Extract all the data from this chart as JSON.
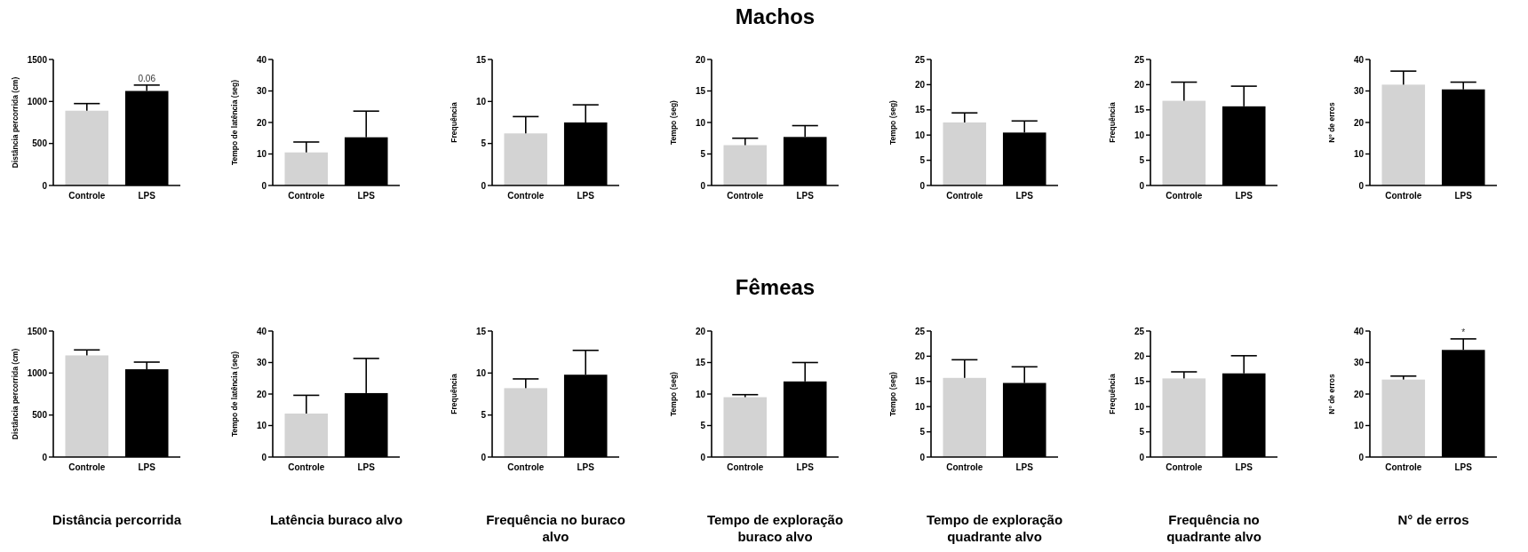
{
  "chart_data": [
    {
      "type": "bar",
      "categories": [
        "Controle",
        "LPS"
      ],
      "values": [
        890,
        1125
      ],
      "errors": [
        [
          890,
          975
        ],
        [
          1125,
          1195
        ]
      ],
      "colors": [
        "#d3d3d3",
        "#000000"
      ],
      "ylabel": "Distância percorrida (cm)",
      "ylim": [
        0,
        1500
      ],
      "yticks": [
        0,
        500,
        1000,
        1500
      ],
      "annotations": [
        {
          "text": "0.06",
          "x": "LPS",
          "y": 1195
        }
      ]
    },
    {
      "type": "bar",
      "categories": [
        "Controle",
        "LPS"
      ],
      "values": [
        10.5,
        15.3
      ],
      "errors": [
        [
          10.5,
          13.8
        ],
        [
          15.3,
          23.6
        ]
      ],
      "colors": [
        "#d3d3d3",
        "#000000"
      ],
      "ylabel": "Tempo de latência (seg)",
      "ylim": [
        0,
        40
      ],
      "yticks": [
        0,
        10,
        20,
        30,
        40
      ]
    },
    {
      "type": "bar",
      "categories": [
        "Controle",
        "LPS"
      ],
      "values": [
        6.2,
        7.5
      ],
      "errors": [
        [
          6.2,
          8.2
        ],
        [
          7.5,
          9.6
        ]
      ],
      "colors": [
        "#d3d3d3",
        "#000000"
      ],
      "ylabel": "Frequência",
      "ylim": [
        0,
        15
      ],
      "yticks": [
        0,
        5,
        10,
        15
      ]
    },
    {
      "type": "bar",
      "title": "Machos",
      "categories": [
        "Controle",
        "LPS"
      ],
      "values": [
        6.4,
        7.7
      ],
      "errors": [
        [
          6.4,
          7.5
        ],
        [
          7.7,
          9.5
        ]
      ],
      "colors": [
        "#d3d3d3",
        "#000000"
      ],
      "ylabel": "Tempo (seg)",
      "ylim": [
        0,
        20
      ],
      "yticks": [
        0,
        5,
        10,
        15,
        20
      ]
    },
    {
      "type": "bar",
      "categories": [
        "Controle",
        "LPS"
      ],
      "values": [
        12.5,
        10.5
      ],
      "errors": [
        [
          12.5,
          14.4
        ],
        [
          10.5,
          12.8
        ]
      ],
      "colors": [
        "#d3d3d3",
        "#000000"
      ],
      "ylabel": "Tempo (seg)",
      "ylim": [
        0,
        25
      ],
      "yticks": [
        0,
        5,
        10,
        15,
        20,
        25
      ]
    },
    {
      "type": "bar",
      "categories": [
        "Controle",
        "LPS"
      ],
      "values": [
        16.8,
        15.7
      ],
      "errors": [
        [
          16.8,
          20.5
        ],
        [
          15.7,
          19.7
        ]
      ],
      "colors": [
        "#d3d3d3",
        "#000000"
      ],
      "ylabel": "Frequência",
      "ylim": [
        0,
        25
      ],
      "yticks": [
        0,
        5,
        10,
        15,
        20,
        25
      ]
    },
    {
      "type": "bar",
      "categories": [
        "Controle",
        "LPS"
      ],
      "values": [
        32,
        30.5
      ],
      "errors": [
        [
          32,
          36.3
        ],
        [
          30.5,
          32.8
        ]
      ],
      "colors": [
        "#d3d3d3",
        "#000000"
      ],
      "ylabel": "N° de erros",
      "ylim": [
        0,
        40
      ],
      "yticks": [
        0,
        10,
        20,
        30,
        40
      ]
    },
    {
      "type": "bar",
      "categories": [
        "Controle",
        "LPS"
      ],
      "values": [
        1210,
        1045
      ],
      "errors": [
        [
          1210,
          1275
        ],
        [
          1045,
          1130
        ]
      ],
      "colors": [
        "#d3d3d3",
        "#000000"
      ],
      "ylabel": "Distância percorrida (cm)",
      "xlabel": "Distância percorrida",
      "ylim": [
        0,
        1500
      ],
      "yticks": [
        0,
        500,
        1000,
        1500
      ]
    },
    {
      "type": "bar",
      "categories": [
        "Controle",
        "LPS"
      ],
      "values": [
        13.8,
        20.3
      ],
      "errors": [
        [
          13.8,
          19.6
        ],
        [
          20.3,
          31.3
        ]
      ],
      "colors": [
        "#d3d3d3",
        "#000000"
      ],
      "ylabel": "Tempo de latência (seg)",
      "xlabel": "Latência buraco alvo",
      "ylim": [
        0,
        40
      ],
      "yticks": [
        0,
        10,
        20,
        30,
        40
      ]
    },
    {
      "type": "bar",
      "categories": [
        "Controle",
        "LPS"
      ],
      "values": [
        8.2,
        9.8
      ],
      "errors": [
        [
          8.2,
          9.3
        ],
        [
          9.8,
          12.7
        ]
      ],
      "colors": [
        "#d3d3d3",
        "#000000"
      ],
      "ylabel": "Frequência",
      "xlabel": "Frequência no buraco alvo",
      "ylim": [
        0,
        15
      ],
      "yticks": [
        0,
        5,
        10,
        15
      ]
    },
    {
      "type": "bar",
      "title": "Fêmeas",
      "categories": [
        "Controle",
        "LPS"
      ],
      "values": [
        9.5,
        12
      ],
      "errors": [
        [
          9.5,
          9.9
        ],
        [
          12,
          15
        ]
      ],
      "colors": [
        "#d3d3d3",
        "#000000"
      ],
      "ylabel": "Tempo (seg)",
      "xlabel": "Tempo de exploração buraco alvo",
      "ylim": [
        0,
        20
      ],
      "yticks": [
        0,
        5,
        10,
        15,
        20
      ]
    },
    {
      "type": "bar",
      "categories": [
        "Controle",
        "LPS"
      ],
      "values": [
        15.7,
        14.7
      ],
      "errors": [
        [
          15.7,
          19.3
        ],
        [
          14.7,
          17.9
        ]
      ],
      "colors": [
        "#d3d3d3",
        "#000000"
      ],
      "ylabel": "Tempo (seg)",
      "xlabel": "Tempo de exploração quadrante alvo",
      "ylim": [
        0,
        25
      ],
      "yticks": [
        0,
        5,
        10,
        15,
        20,
        25
      ]
    },
    {
      "type": "bar",
      "categories": [
        "Controle",
        "LPS"
      ],
      "values": [
        15.6,
        16.6
      ],
      "errors": [
        [
          15.6,
          16.9
        ],
        [
          16.6,
          20.1
        ]
      ],
      "colors": [
        "#d3d3d3",
        "#000000"
      ],
      "ylabel": "Frequência",
      "xlabel": "Frequência no quadrante alvo",
      "ylim": [
        0,
        25
      ],
      "yticks": [
        0,
        5,
        10,
        15,
        20,
        25
      ]
    },
    {
      "type": "bar",
      "categories": [
        "Controle",
        "LPS"
      ],
      "values": [
        24.6,
        34
      ],
      "errors": [
        [
          24.6,
          25.7
        ],
        [
          34,
          37.5
        ]
      ],
      "colors": [
        "#d3d3d3",
        "#000000"
      ],
      "ylabel": "N° de erros",
      "xlabel": "N° de erros",
      "ylim": [
        0,
        40
      ],
      "yticks": [
        0,
        10,
        20,
        30,
        40
      ],
      "annotations": [
        {
          "text": "*",
          "x": "LPS",
          "y": 37.5
        }
      ]
    }
  ]
}
